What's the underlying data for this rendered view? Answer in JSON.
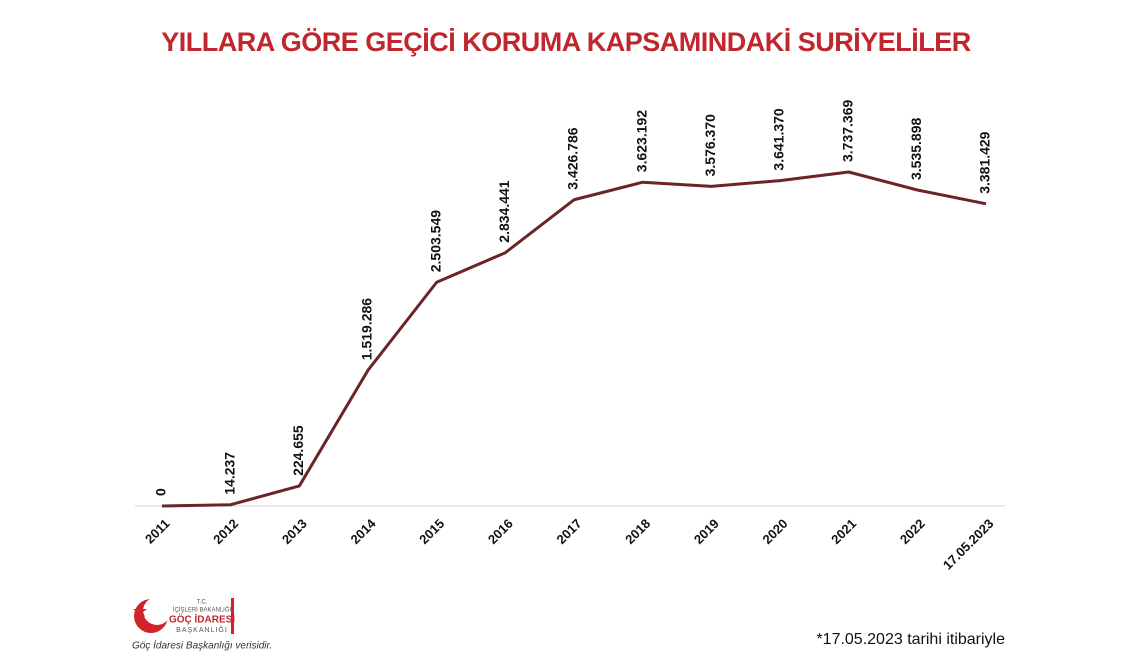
{
  "chart_data": {
    "type": "line",
    "title": "YILLARA GÖRE GEÇİCİ KORUMA KAPSAMINDAKİ SURİYELİLER",
    "categories": [
      "2011",
      "2012",
      "2013",
      "2014",
      "2015",
      "2016",
      "2017",
      "2018",
      "2019",
      "2020",
      "2021",
      "2022",
      "17.05.2023"
    ],
    "values": [
      0,
      14237,
      224655,
      1519286,
      2503549,
      2834441,
      3426786,
      3623192,
      3576370,
      3641370,
      3737369,
      3535898,
      3381429
    ],
    "value_labels": [
      "0",
      "14.237",
      "224.655",
      "1.519.286",
      "2.503.549",
      "2.834.441",
      "3.426.786",
      "3.623.192",
      "3.576.370",
      "3.641.370",
      "3.737.369",
      "3.535.898",
      "3.381.429"
    ],
    "color": "#6b2428"
  },
  "logo": {
    "line1": "T.C.",
    "line2": "İÇİŞLERİ BAKANLIĞI",
    "line3": "GÖÇ İDARESİ",
    "line4": "BAŞKANLIĞI",
    "source": "Göç İdaresi Başkanlığı verisidir."
  },
  "footnote": "*17.05.2023 tarihi itibariyle"
}
